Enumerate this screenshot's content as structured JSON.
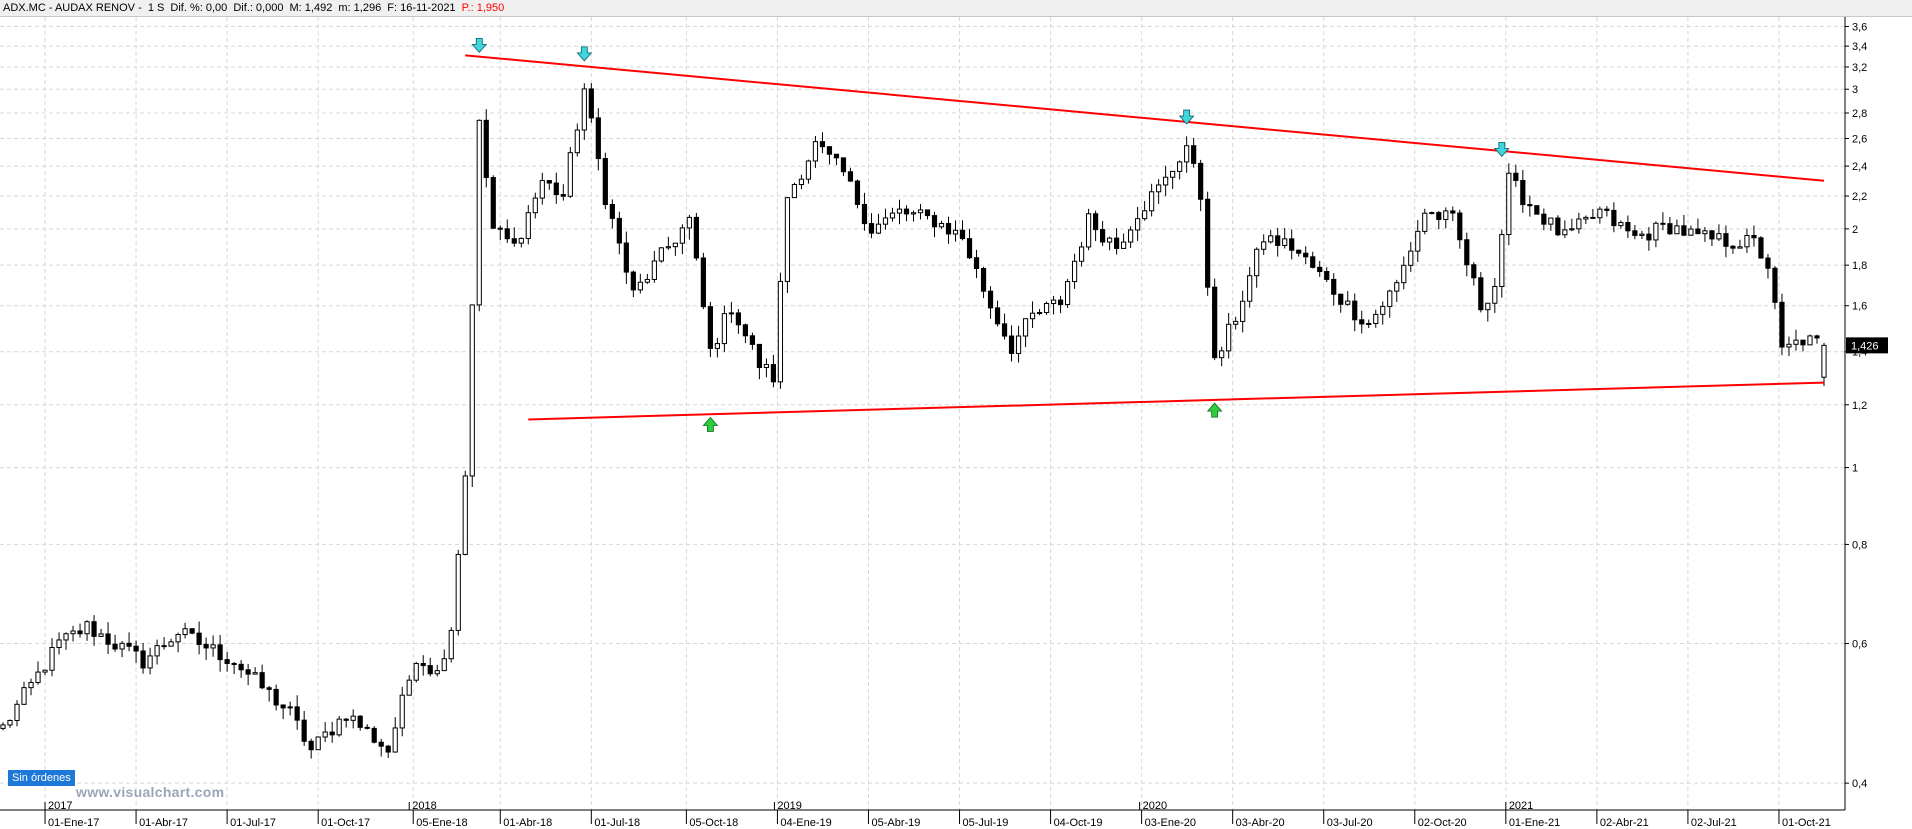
{
  "header": {
    "symbol": "ADX.MC - AUDAX RENOV -",
    "period": "1 S",
    "dif_pct": "Dif. %: 0,00",
    "dif": "Dif.: 0,000",
    "max": "M: 1,492",
    "min": "m: 1,296",
    "date": "F: 16-11-2021",
    "price": "P.: 1,950"
  },
  "status_badge": "Sin órdenes",
  "watermark": "www.visualchart.com",
  "colors": {
    "trendline": "#ff0000",
    "bull_candle": "#ffffff",
    "bear_candle": "#000000",
    "top_arrow": "#3fd6dc",
    "bottom_arrow": "#2ecc40",
    "grid": "#d8d8d8"
  },
  "chart_data": {
    "type": "candlestick",
    "title": "",
    "y_scale": "log",
    "ylim": [
      0.37,
      3.7
    ],
    "y_ticks": [
      "3,6",
      "3,4",
      "3,2",
      "3",
      "2,8",
      "2,6",
      "2,4",
      "2,2",
      "2",
      "1,8",
      "1,6",
      "1,4",
      "1,2",
      "1",
      "0,8",
      "0,6",
      "0,4"
    ],
    "y_tick_values": [
      3.6,
      3.4,
      3.2,
      3.0,
      2.8,
      2.6,
      2.4,
      2.2,
      2.0,
      1.8,
      1.6,
      1.4,
      1.2,
      1.0,
      0.8,
      0.6,
      0.4
    ],
    "year_labels": [
      {
        "label": "2017",
        "x": "2017-01-02"
      },
      {
        "label": "2018",
        "x": "2018-01-01"
      },
      {
        "label": "2019",
        "x": "2019-01-01"
      },
      {
        "label": "2020",
        "x": "2020-01-01"
      },
      {
        "label": "2021",
        "x": "2021-01-01"
      }
    ],
    "x_labels": [
      {
        "label": "01-Ene-17",
        "x": "2017-01-02"
      },
      {
        "label": "01-Abr-17",
        "x": "2017-04-03"
      },
      {
        "label": "01-Jul-17",
        "x": "2017-07-03"
      },
      {
        "label": "01-Oct-17",
        "x": "2017-10-02"
      },
      {
        "label": "05-Ene-18",
        "x": "2018-01-05"
      },
      {
        "label": "01-Abr-18",
        "x": "2018-04-02"
      },
      {
        "label": "01-Jul-18",
        "x": "2018-07-02"
      },
      {
        "label": "05-Oct-18",
        "x": "2018-10-05"
      },
      {
        "label": "04-Ene-19",
        "x": "2019-01-04"
      },
      {
        "label": "05-Abr-19",
        "x": "2019-04-05"
      },
      {
        "label": "05-Jul-19",
        "x": "2019-07-05"
      },
      {
        "label": "04-Oct-19",
        "x": "2019-10-04"
      },
      {
        "label": "03-Ene-20",
        "x": "2020-01-03"
      },
      {
        "label": "03-Abr-20",
        "x": "2020-04-03"
      },
      {
        "label": "03-Jul-20",
        "x": "2020-07-03"
      },
      {
        "label": "02-Oct-20",
        "x": "2020-10-02"
      },
      {
        "label": "01-Ene-21",
        "x": "2021-01-01"
      },
      {
        "label": "02-Abr-21",
        "x": "2021-04-02"
      },
      {
        "label": "02-Jul-21",
        "x": "2021-07-02"
      },
      {
        "label": "01-Oct-21",
        "x": "2021-10-01"
      }
    ],
    "x_range": [
      "2016-11-18",
      "2021-12-06"
    ],
    "last_price_label": "1,426",
    "last_price": 1.426,
    "trendlines": [
      {
        "name": "upper",
        "points": [
          {
            "x": "2018-02-26",
            "y": 3.31
          },
          {
            "x": "2021-11-15",
            "y": 2.3
          }
        ]
      },
      {
        "name": "lower",
        "points": [
          {
            "x": "2018-04-30",
            "y": 1.15
          },
          {
            "x": "2021-11-15",
            "y": 1.28
          }
        ]
      }
    ],
    "markers": [
      {
        "type": "top",
        "x": "2018-03-12",
        "y": 3.3
      },
      {
        "type": "top",
        "x": "2018-06-25",
        "y": 3.22
      },
      {
        "type": "top",
        "x": "2020-02-17",
        "y": 2.68
      },
      {
        "type": "top",
        "x": "2020-12-28",
        "y": 2.44
      },
      {
        "type": "bottom",
        "x": "2018-10-29",
        "y": 1.17
      },
      {
        "type": "bottom",
        "x": "2020-03-16",
        "y": 1.22
      }
    ],
    "anchors": [
      {
        "x": "2016-11-21",
        "y": 0.47
      },
      {
        "x": "2017-01-16",
        "y": 0.6
      },
      {
        "x": "2017-02-13",
        "y": 0.63
      },
      {
        "x": "2017-04-10",
        "y": 0.57
      },
      {
        "x": "2017-05-15",
        "y": 0.62
      },
      {
        "x": "2017-07-10",
        "y": 0.57
      },
      {
        "x": "2017-09-04",
        "y": 0.49
      },
      {
        "x": "2017-09-25",
        "y": 0.44
      },
      {
        "x": "2017-10-30",
        "y": 0.49
      },
      {
        "x": "2017-12-11",
        "y": 0.44
      },
      {
        "x": "2018-01-08",
        "y": 0.58
      },
      {
        "x": "2018-01-29",
        "y": 0.55
      },
      {
        "x": "2018-02-12",
        "y": 0.63
      },
      {
        "x": "2018-02-26",
        "y": 0.98
      },
      {
        "x": "2018-03-12",
        "y": 2.7
      },
      {
        "x": "2018-03-26",
        "y": 2.0
      },
      {
        "x": "2018-04-16",
        "y": 1.9
      },
      {
        "x": "2018-05-14",
        "y": 2.3
      },
      {
        "x": "2018-06-04",
        "y": 2.2
      },
      {
        "x": "2018-06-25",
        "y": 3.0
      },
      {
        "x": "2018-07-16",
        "y": 2.2
      },
      {
        "x": "2018-08-13",
        "y": 1.65
      },
      {
        "x": "2018-09-17",
        "y": 1.9
      },
      {
        "x": "2018-10-08",
        "y": 2.05
      },
      {
        "x": "2018-10-29",
        "y": 1.4
      },
      {
        "x": "2018-11-19",
        "y": 1.6
      },
      {
        "x": "2018-12-17",
        "y": 1.35
      },
      {
        "x": "2018-12-31",
        "y": 1.3
      },
      {
        "x": "2019-01-14",
        "y": 2.2
      },
      {
        "x": "2019-02-11",
        "y": 2.55
      },
      {
        "x": "2019-03-11",
        "y": 2.35
      },
      {
        "x": "2019-04-08",
        "y": 2.0
      },
      {
        "x": "2019-05-06",
        "y": 2.1
      },
      {
        "x": "2019-06-10",
        "y": 2.05
      },
      {
        "x": "2019-07-08",
        "y": 1.95
      },
      {
        "x": "2019-08-05",
        "y": 1.6
      },
      {
        "x": "2019-08-26",
        "y": 1.42
      },
      {
        "x": "2019-09-16",
        "y": 1.55
      },
      {
        "x": "2019-10-14",
        "y": 1.62
      },
      {
        "x": "2019-11-11",
        "y": 2.05
      },
      {
        "x": "2019-12-09",
        "y": 1.9
      },
      {
        "x": "2019-12-30",
        "y": 2.1
      },
      {
        "x": "2020-01-27",
        "y": 2.3
      },
      {
        "x": "2020-02-17",
        "y": 2.55
      },
      {
        "x": "2020-03-02",
        "y": 2.2
      },
      {
        "x": "2020-03-16",
        "y": 1.35
      },
      {
        "x": "2020-04-06",
        "y": 1.55
      },
      {
        "x": "2020-05-04",
        "y": 1.95
      },
      {
        "x": "2020-06-01",
        "y": 1.9
      },
      {
        "x": "2020-06-29",
        "y": 1.75
      },
      {
        "x": "2020-07-27",
        "y": 1.6
      },
      {
        "x": "2020-08-17",
        "y": 1.52
      },
      {
        "x": "2020-09-14",
        "y": 1.7
      },
      {
        "x": "2020-10-12",
        "y": 2.1
      },
      {
        "x": "2020-11-09",
        "y": 2.05
      },
      {
        "x": "2020-12-07",
        "y": 1.6
      },
      {
        "x": "2020-12-21",
        "y": 1.7
      },
      {
        "x": "2021-01-04",
        "y": 2.3
      },
      {
        "x": "2021-02-01",
        "y": 2.1
      },
      {
        "x": "2021-03-01",
        "y": 1.95
      },
      {
        "x": "2021-04-05",
        "y": 2.1
      },
      {
        "x": "2021-05-10",
        "y": 1.95
      },
      {
        "x": "2021-06-14",
        "y": 2.02
      },
      {
        "x": "2021-07-12",
        "y": 1.95
      },
      {
        "x": "2021-08-09",
        "y": 1.93
      },
      {
        "x": "2021-09-06",
        "y": 1.92
      },
      {
        "x": "2021-09-20",
        "y": 1.8
      },
      {
        "x": "2021-10-04",
        "y": 1.4
      },
      {
        "x": "2021-10-25",
        "y": 1.45
      },
      {
        "x": "2021-11-15",
        "y": 1.426
      }
    ]
  }
}
